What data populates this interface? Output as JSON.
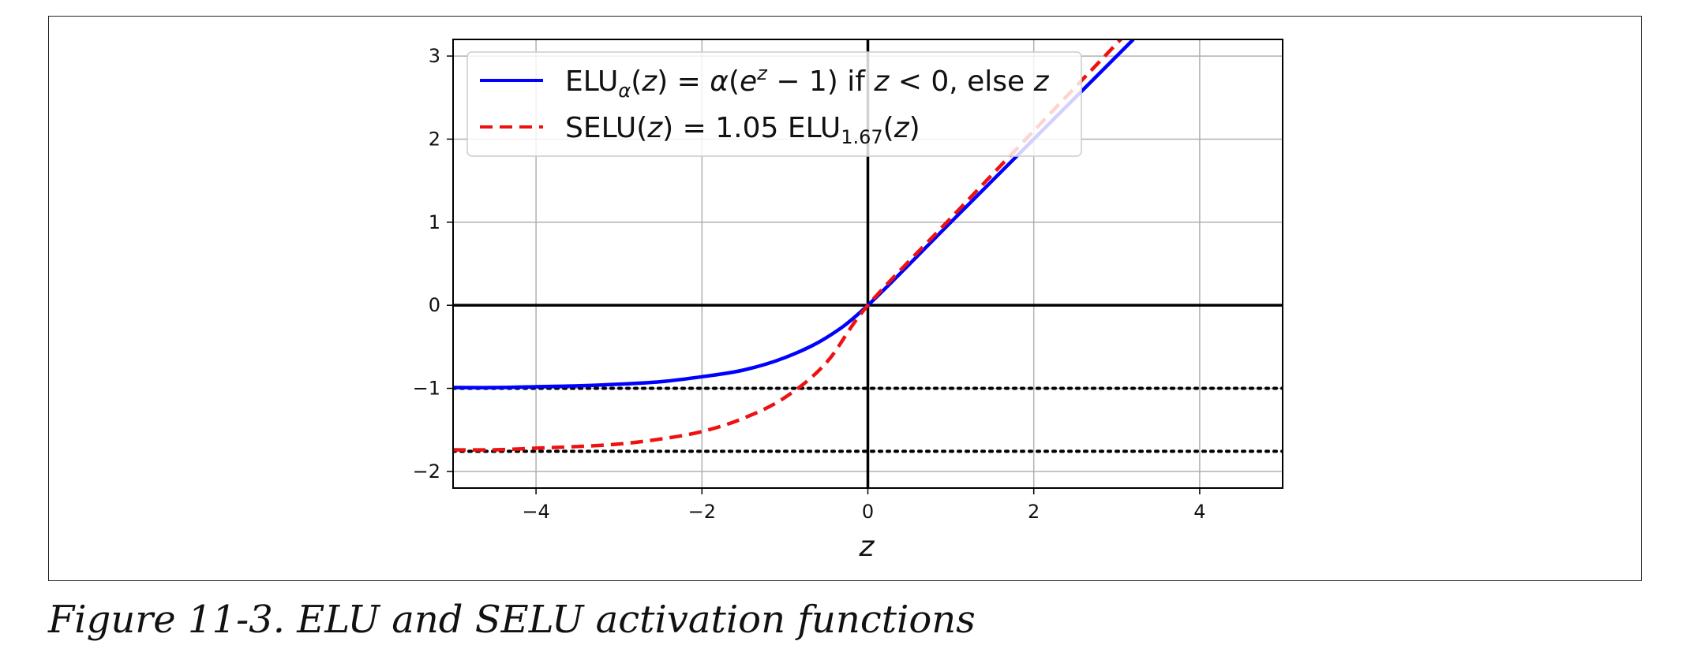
{
  "caption": "Figure 11-3. ELU and SELU activation functions",
  "chart_data": {
    "type": "line",
    "title": "",
    "xlabel": "z",
    "ylabel": "",
    "xlim": [
      -5,
      5
    ],
    "ylim": [
      -2.2,
      3.2
    ],
    "xticks": [
      -4,
      -2,
      0,
      2,
      4
    ],
    "xtick_labels": [
      "−4",
      "−2",
      "0",
      "2",
      "4"
    ],
    "yticks": [
      -2,
      -1,
      0,
      1,
      2,
      3
    ],
    "ytick_labels": [
      "−2",
      "−1",
      "0",
      "1",
      "2",
      "3"
    ],
    "grid": true,
    "legend_position": "upper-left",
    "series": [
      {
        "name": "ELUα(z) = α(e^z − 1) if z < 0, else z",
        "color": "#0000ff",
        "style": "solid",
        "x": [
          -5,
          -4.5,
          -4,
          -3.5,
          -3,
          -2.5,
          -2,
          -1.5,
          -1,
          -0.5,
          0,
          1,
          2,
          3,
          3.2
        ],
        "values": [
          -0.99,
          -0.99,
          -0.98,
          -0.97,
          -0.95,
          -0.92,
          -0.86,
          -0.78,
          -0.63,
          -0.39,
          0,
          1,
          2,
          3,
          3.2
        ]
      },
      {
        "name": "SELU(z) = 1.05 ELU1.67(z)",
        "color": "#ee1111",
        "style": "dashed",
        "x": [
          -5,
          -4.5,
          -4,
          -3.5,
          -3,
          -2.5,
          -2,
          -1.5,
          -1,
          -0.5,
          0,
          1,
          2,
          3,
          3.05
        ],
        "values": [
          -1.74,
          -1.74,
          -1.72,
          -1.7,
          -1.67,
          -1.61,
          -1.52,
          -1.36,
          -1.11,
          -0.69,
          0,
          1.05,
          2.1,
          3.15,
          3.2
        ]
      }
    ],
    "reference_lines": [
      {
        "y": -1,
        "color": "#000000",
        "style": "dotted"
      },
      {
        "y": -1.7581,
        "color": "#000000",
        "style": "dotted"
      }
    ]
  }
}
